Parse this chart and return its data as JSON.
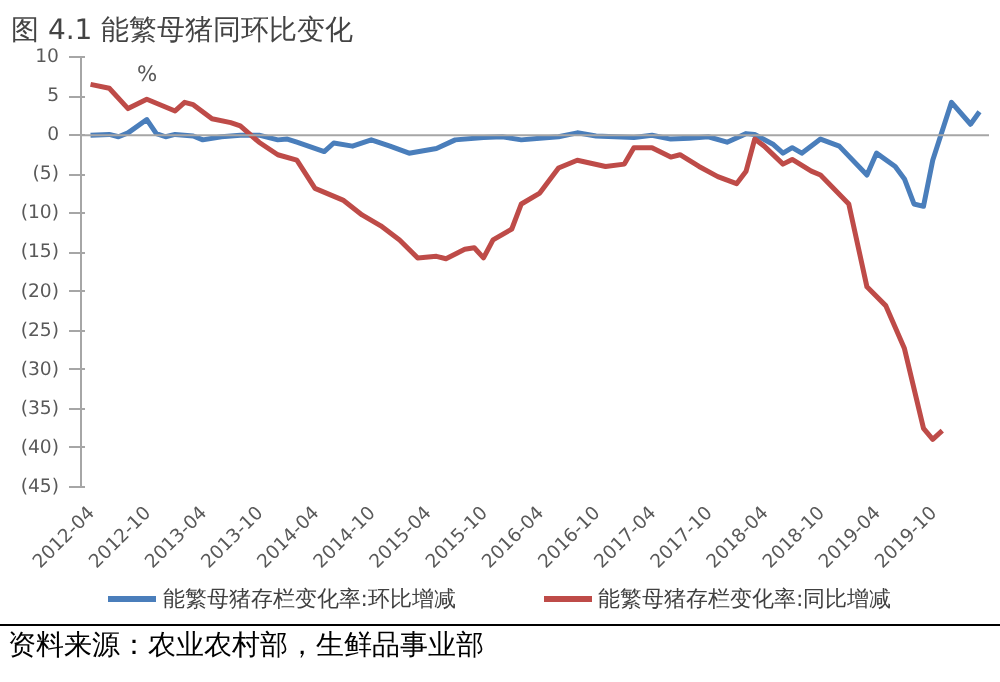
{
  "chart_data": {
    "type": "line",
    "title": "图 4.1  能繁母猪同环比变化",
    "ylabel": "%",
    "annotations": [
      "资料来源：农业农村部，生鲜品事业部"
    ],
    "xlim": [
      "2012-03",
      "2020-04"
    ],
    "xticks": [
      {
        "value": "2012-04",
        "label": "2012-04"
      },
      {
        "value": "2012-10",
        "label": "2012-10"
      },
      {
        "value": "2013-04",
        "label": "2013-04"
      },
      {
        "value": "2013-10",
        "label": "2013-10"
      },
      {
        "value": "2014-04",
        "label": "2014-04"
      },
      {
        "value": "2014-10",
        "label": "2014-10"
      },
      {
        "value": "2015-04",
        "label": "2015-04"
      },
      {
        "value": "2015-10",
        "label": "2015-10"
      },
      {
        "value": "2016-04",
        "label": "2016-04"
      },
      {
        "value": "2016-10",
        "label": "2016-10"
      },
      {
        "value": "2017-04",
        "label": "2017-04"
      },
      {
        "value": "2017-10",
        "label": "2017-10"
      },
      {
        "value": "2018-04",
        "label": "2018-04"
      },
      {
        "value": "2018-10",
        "label": "2018-10"
      },
      {
        "value": "2019-04",
        "label": "2019-04"
      },
      {
        "value": "2019-10",
        "label": "2019-10"
      }
    ],
    "ylim": [
      -45,
      10
    ],
    "yticks": [
      10,
      5,
      0,
      {
        "value": -5,
        "label": "(5)"
      },
      {
        "value": -10,
        "label": "(10)"
      },
      {
        "value": -15,
        "label": "(15)"
      },
      {
        "value": -20,
        "label": "(20)"
      },
      {
        "value": -25,
        "label": "(25)"
      },
      {
        "value": -30,
        "label": "(30)"
      },
      {
        "value": -35,
        "label": "(35)"
      },
      {
        "value": -40,
        "label": "(40)"
      },
      {
        "value": -45,
        "label": "(45)"
      }
    ],
    "ref_lines": [
      {
        "axis": "y",
        "value": 0,
        "color": "#a6a6a6"
      }
    ],
    "grid": false,
    "legend": "bottom",
    "series": [
      {
        "name": "能繁母猪存栏变化率:环比增减",
        "color": "#4a7ebb",
        "x": [
          "2012-04",
          "2012-06",
          "2012-07",
          "2012-08",
          "2012-10",
          "2012-11",
          "2012-12",
          "2013-01",
          "2013-03",
          "2013-04",
          "2013-06",
          "2013-08",
          "2013-10",
          "2013-12",
          "2014-01",
          "2014-02",
          "2014-05",
          "2014-06",
          "2014-08",
          "2014-10",
          "2014-12",
          "2015-02",
          "2015-05",
          "2015-07",
          "2015-10",
          "2015-12",
          "2016-02",
          "2016-04",
          "2016-06",
          "2016-08",
          "2016-10",
          "2016-12",
          "2017-02",
          "2017-04",
          "2017-06",
          "2017-08",
          "2017-10",
          "2017-12",
          "2018-02",
          "2018-03",
          "2018-05",
          "2018-06",
          "2018-07",
          "2018-08",
          "2018-10",
          "2018-12",
          "2019-03",
          "2019-04",
          "2019-06",
          "2019-07",
          "2019-08",
          "2019-09",
          "2019-10",
          "2019-12",
          "2020-02",
          "2020-03"
        ],
        "values": [
          0,
          0.1,
          -0.2,
          0.3,
          2.0,
          0.2,
          -0.2,
          0.1,
          -0.1,
          -0.6,
          -0.2,
          0,
          0,
          -0.6,
          -0.5,
          -0.9,
          -2.1,
          -1.0,
          -1.4,
          -0.6,
          -1.4,
          -2.3,
          -1.7,
          -0.6,
          -0.3,
          -0.2,
          -0.6,
          -0.4,
          -0.2,
          0.3,
          -0.1,
          -0.2,
          -0.3,
          0,
          -0.5,
          -0.4,
          -0.2,
          -0.9,
          0.2,
          0.1,
          -1.2,
          -2.3,
          -1.6,
          -2.3,
          -0.5,
          -1.4,
          -5.1,
          -2.3,
          -4.0,
          -5.6,
          -8.8,
          -9.1,
          -3.2,
          4.2,
          1.4,
          3.0
        ]
      },
      {
        "name": "能繁母猪存栏变化率:同比增减",
        "color": "#be4b48",
        "x": [
          "2012-04",
          "2012-06",
          "2012-08",
          "2012-10",
          "2013-01",
          "2013-02",
          "2013-03",
          "2013-05",
          "2013-07",
          "2013-08",
          "2013-10",
          "2013-12",
          "2014-02",
          "2014-04",
          "2014-07",
          "2014-09",
          "2014-11",
          "2015-01",
          "2015-03",
          "2015-05",
          "2015-06",
          "2015-08",
          "2015-09",
          "2015-10",
          "2015-11",
          "2016-01",
          "2016-02",
          "2016-04",
          "2016-06",
          "2016-08",
          "2016-11",
          "2017-01",
          "2017-02",
          "2017-04",
          "2017-06",
          "2017-07",
          "2017-09",
          "2017-11",
          "2018-01",
          "2018-02",
          "2018-03",
          "2018-04",
          "2018-06",
          "2018-07",
          "2018-09",
          "2018-10",
          "2019-01",
          "2019-03",
          "2019-05",
          "2019-07",
          "2019-09",
          "2019-10",
          "2019-11"
        ],
        "values": [
          6.5,
          6.0,
          3.4,
          4.6,
          3.1,
          4.2,
          3.9,
          2.1,
          1.6,
          1.2,
          -0.9,
          -2.5,
          -3.2,
          -6.8,
          -8.3,
          -10.2,
          -11.6,
          -13.4,
          -15.7,
          -15.5,
          -15.8,
          -14.6,
          -14.4,
          -15.7,
          -13.4,
          -12.0,
          -8.8,
          -7.4,
          -4.2,
          -3.2,
          -4.0,
          -3.7,
          -1.6,
          -1.6,
          -2.8,
          -2.5,
          -4.0,
          -5.3,
          -6.2,
          -4.6,
          -0.5,
          -1.4,
          -3.7,
          -3.1,
          -4.6,
          -5.1,
          -8.8,
          -19.4,
          -21.8,
          -27.3,
          -37.5,
          -38.9,
          -37.8
        ]
      }
    ]
  }
}
